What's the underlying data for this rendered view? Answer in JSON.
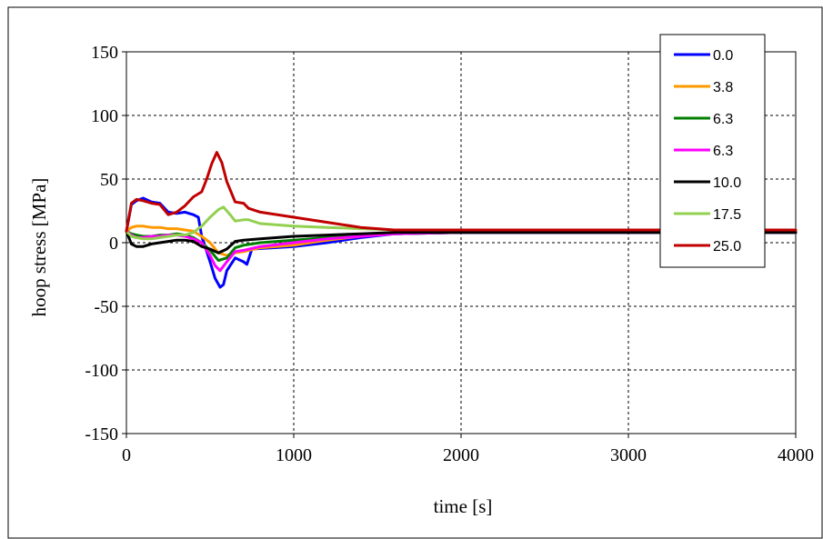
{
  "chart_data": {
    "type": "line",
    "title": "",
    "xlabel": "time [s]",
    "ylabel": "hoop stress [MPa]",
    "xlim": [
      0,
      4000
    ],
    "ylim": [
      -150,
      150
    ],
    "xticks": [
      0,
      1000,
      2000,
      3000,
      4000
    ],
    "yticks": [
      -150,
      -100,
      -50,
      0,
      50,
      100,
      150
    ],
    "xtick_labels": [
      "0",
      "1000",
      "2000",
      "3000",
      "4000"
    ],
    "ytick_labels": [
      "-150",
      "-100",
      "-50",
      "0",
      "50",
      "100",
      "150"
    ],
    "grid": "dashed",
    "legend_position": "top-right",
    "series": [
      {
        "name": "0.0",
        "color": "#0000ff",
        "x": [
          0,
          30,
          60,
          100,
          150,
          200,
          250,
          300,
          350,
          400,
          430,
          450,
          500,
          530,
          560,
          580,
          600,
          650,
          700,
          720,
          750,
          1000,
          1200,
          1400,
          1600,
          2000,
          3000,
          4000
        ],
        "y": [
          9,
          30,
          33,
          35,
          32,
          31,
          24,
          23,
          24,
          22,
          20,
          5,
          -15,
          -28,
          -35,
          -33,
          -22,
          -12,
          -15,
          -17,
          -5,
          -3,
          0,
          4,
          7,
          8,
          8,
          8
        ]
      },
      {
        "name": "3.8",
        "color": "#ff9900",
        "x": [
          0,
          30,
          60,
          100,
          150,
          200,
          250,
          300,
          350,
          400,
          450,
          500,
          550,
          600,
          650,
          700,
          800,
          1000,
          1200,
          1600,
          2000,
          3000,
          4000
        ],
        "y": [
          9,
          12,
          13,
          13,
          12,
          12,
          11,
          11,
          10,
          9,
          5,
          0,
          -8,
          -10,
          -8,
          -7,
          -4,
          -2,
          2,
          8,
          9,
          9,
          9
        ]
      },
      {
        "name": "6.3",
        "color": "#008000",
        "x": [
          0,
          30,
          60,
          100,
          150,
          200,
          250,
          300,
          350,
          400,
          450,
          500,
          550,
          600,
          650,
          700,
          800,
          1000,
          1200,
          1600,
          2000,
          3000,
          4000
        ],
        "y": [
          9,
          7,
          6,
          5,
          5,
          6,
          6,
          7,
          6,
          4,
          0,
          -6,
          -14,
          -12,
          -4,
          -2,
          0,
          2,
          4,
          7,
          8,
          8,
          8
        ]
      },
      {
        "name": "6.3",
        "color": "#ff00ff",
        "x": [
          0,
          30,
          60,
          100,
          150,
          200,
          250,
          300,
          350,
          400,
          450,
          500,
          530,
          560,
          600,
          650,
          700,
          800,
          1000,
          1200,
          1600,
          2000,
          3000,
          4000
        ],
        "y": [
          9,
          6,
          4,
          4,
          5,
          5,
          6,
          6,
          5,
          3,
          0,
          -10,
          -18,
          -22,
          -15,
          -7,
          -6,
          -3,
          0,
          3,
          7,
          8,
          8,
          8
        ]
      },
      {
        "name": "10.0",
        "color": "#000000",
        "x": [
          0,
          30,
          60,
          100,
          150,
          200,
          250,
          300,
          350,
          400,
          450,
          500,
          550,
          600,
          650,
          700,
          800,
          900,
          1000,
          1200,
          1400,
          1600,
          2000,
          3000,
          4000
        ],
        "y": [
          9,
          -1,
          -3,
          -3,
          -1,
          0,
          1,
          2,
          2,
          1,
          -3,
          -5,
          -8,
          -5,
          1,
          2,
          3,
          4,
          5,
          6,
          7,
          8,
          8,
          8,
          8
        ]
      },
      {
        "name": "17.5",
        "color": "#92d050",
        "x": [
          0,
          30,
          60,
          100,
          150,
          200,
          250,
          300,
          350,
          400,
          450,
          500,
          550,
          580,
          620,
          650,
          700,
          730,
          800,
          1000,
          1200,
          1400,
          1600,
          2000,
          3000,
          4000
        ],
        "y": [
          9,
          5,
          4,
          3,
          3,
          4,
          5,
          6,
          6,
          8,
          13,
          20,
          26,
          28,
          22,
          17,
          18,
          18,
          15,
          13,
          12,
          11,
          10,
          10,
          10,
          10
        ]
      },
      {
        "name": "25.0",
        "color": "#c00000",
        "x": [
          0,
          30,
          60,
          100,
          150,
          200,
          250,
          300,
          350,
          400,
          450,
          480,
          510,
          540,
          570,
          600,
          650,
          700,
          730,
          800,
          1000,
          1200,
          1400,
          1600,
          2000,
          3000,
          4000
        ],
        "y": [
          9,
          31,
          34,
          33,
          31,
          30,
          22,
          24,
          29,
          36,
          40,
          50,
          62,
          71,
          63,
          48,
          32,
          31,
          27,
          24,
          20,
          16,
          12,
          10,
          10,
          10,
          10
        ]
      }
    ]
  }
}
